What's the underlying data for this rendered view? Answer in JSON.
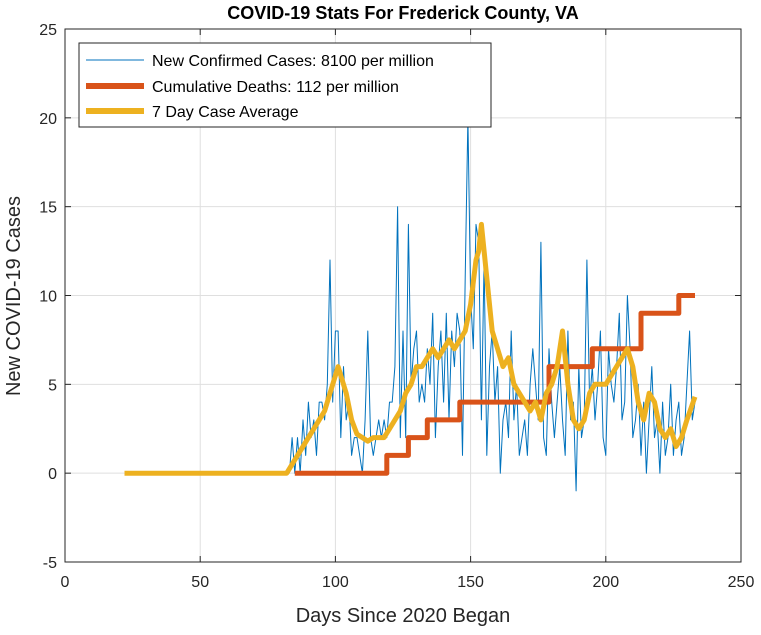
{
  "chart_data": {
    "type": "line",
    "title": "COVID-19 Stats For Frederick County, VA",
    "xlabel": "Days Since 2020 Began",
    "ylabel": "New COVID-19 Cases",
    "xlim": [
      0,
      250
    ],
    "ylim": [
      -5,
      25
    ],
    "xticks": [
      0,
      50,
      100,
      150,
      200,
      250
    ],
    "yticks": [
      -5,
      0,
      5,
      10,
      15,
      20,
      25
    ],
    "grid": true,
    "legend_position": "top-left",
    "series": [
      {
        "name": "New Confirmed Cases: 8100 per million",
        "color": "#0072BD",
        "x": [
          83,
          84,
          85,
          86,
          87,
          88,
          89,
          90,
          91,
          92,
          93,
          94,
          95,
          96,
          97,
          98,
          99,
          100,
          101,
          102,
          103,
          104,
          105,
          106,
          107,
          108,
          109,
          110,
          111,
          112,
          113,
          114,
          115,
          116,
          117,
          118,
          119,
          120,
          121,
          122,
          123,
          124,
          125,
          126,
          127,
          128,
          129,
          130,
          131,
          132,
          133,
          134,
          135,
          136,
          137,
          138,
          139,
          140,
          141,
          142,
          143,
          144,
          145,
          146,
          147,
          148,
          149,
          150,
          151,
          152,
          153,
          154,
          155,
          156,
          157,
          158,
          159,
          160,
          161,
          162,
          163,
          164,
          165,
          166,
          167,
          168,
          169,
          170,
          171,
          172,
          173,
          174,
          175,
          176,
          177,
          178,
          179,
          180,
          181,
          182,
          183,
          184,
          185,
          186,
          187,
          188,
          189,
          190,
          191,
          192,
          193,
          194,
          195,
          196,
          197,
          198,
          199,
          200,
          201,
          202,
          203,
          204,
          205,
          206,
          207,
          208,
          209,
          210,
          211,
          212,
          213,
          214,
          215,
          216,
          217,
          218,
          219,
          220,
          221,
          222,
          223,
          224,
          225,
          226,
          227,
          228,
          229,
          230,
          231,
          232,
          233
        ],
        "y": [
          0,
          2,
          0,
          2,
          0,
          3,
          1,
          4,
          2,
          3,
          1,
          4,
          4,
          3,
          5,
          12,
          4,
          8,
          8,
          2,
          6,
          3,
          4,
          1,
          2,
          2,
          1,
          0,
          3,
          8,
          2,
          1,
          2,
          3,
          2,
          3,
          2,
          4,
          4,
          6,
          15,
          2,
          8,
          2,
          14,
          5,
          7,
          8,
          4,
          5,
          4,
          7,
          5,
          9,
          2,
          6,
          8,
          4,
          9,
          3,
          8,
          6,
          9,
          8,
          1,
          11,
          20,
          10,
          7,
          14,
          13,
          3,
          12,
          1,
          6,
          8,
          4,
          6,
          0,
          3,
          4,
          2,
          8,
          3,
          5,
          1,
          2,
          3,
          1,
          5,
          7,
          5,
          3,
          13,
          2,
          1,
          7,
          4,
          2,
          4,
          6,
          3,
          1,
          8,
          3,
          4,
          -1,
          6,
          2,
          3,
          12,
          4,
          6,
          3,
          5,
          8,
          2,
          1,
          7,
          5,
          4,
          6,
          9,
          3,
          4,
          10,
          7,
          2,
          3,
          5,
          1,
          4,
          0,
          3,
          6,
          2,
          3,
          0,
          4,
          1,
          2,
          5,
          1,
          3,
          4,
          1,
          2,
          5,
          8,
          3,
          4
        ]
      },
      {
        "name": "Cumulative Deaths: 112 per million",
        "color": "#D95319",
        "x": [
          85,
          119,
          119,
          127,
          127,
          134,
          134,
          146,
          146,
          179,
          179,
          186,
          186,
          195,
          195,
          213,
          213,
          227,
          227,
          233
        ],
        "y": [
          0,
          0,
          1,
          1,
          2,
          2,
          3,
          3,
          4,
          4,
          6,
          6,
          6,
          6,
          7,
          7,
          9,
          9,
          10,
          10
        ]
      },
      {
        "name": "7 Day Case Average",
        "color": "#EDB120",
        "x": [
          22,
          82,
          84,
          86,
          88,
          90,
          92,
          94,
          96,
          98,
          100,
          101,
          102,
          104,
          106,
          108,
          110,
          112,
          114,
          116,
          118,
          120,
          122,
          124,
          126,
          128,
          130,
          132,
          134,
          136,
          138,
          140,
          142,
          144,
          146,
          148,
          150,
          152,
          153,
          154,
          156,
          158,
          160,
          162,
          164,
          166,
          168,
          170,
          172,
          174,
          176,
          178,
          180,
          182,
          184,
          186,
          188,
          190,
          192,
          194,
          196,
          198,
          200,
          202,
          204,
          206,
          208,
          210,
          212,
          214,
          216,
          218,
          220,
          222,
          224,
          226,
          228,
          230,
          233
        ],
        "y": [
          0,
          0,
          0.5,
          1,
          1.5,
          2,
          2.5,
          3,
          3.5,
          4.5,
          5.5,
          6,
          5.5,
          4.5,
          3,
          2.2,
          2,
          1.8,
          2,
          2,
          2,
          2.5,
          3,
          3.5,
          4.5,
          5,
          6,
          6,
          6.5,
          7,
          6.5,
          7,
          7.5,
          7,
          7.5,
          8,
          9.5,
          12,
          12.5,
          14,
          11,
          8,
          7,
          6,
          6.5,
          5,
          4.5,
          4,
          3.5,
          4,
          3,
          4.5,
          5,
          6,
          8,
          5,
          3,
          2.5,
          3,
          4.5,
          5,
          5,
          5,
          5.5,
          6,
          6.5,
          7,
          6,
          4,
          3,
          4.5,
          4,
          2.5,
          2,
          2.5,
          1.5,
          2,
          3,
          4.3
        ]
      }
    ]
  }
}
